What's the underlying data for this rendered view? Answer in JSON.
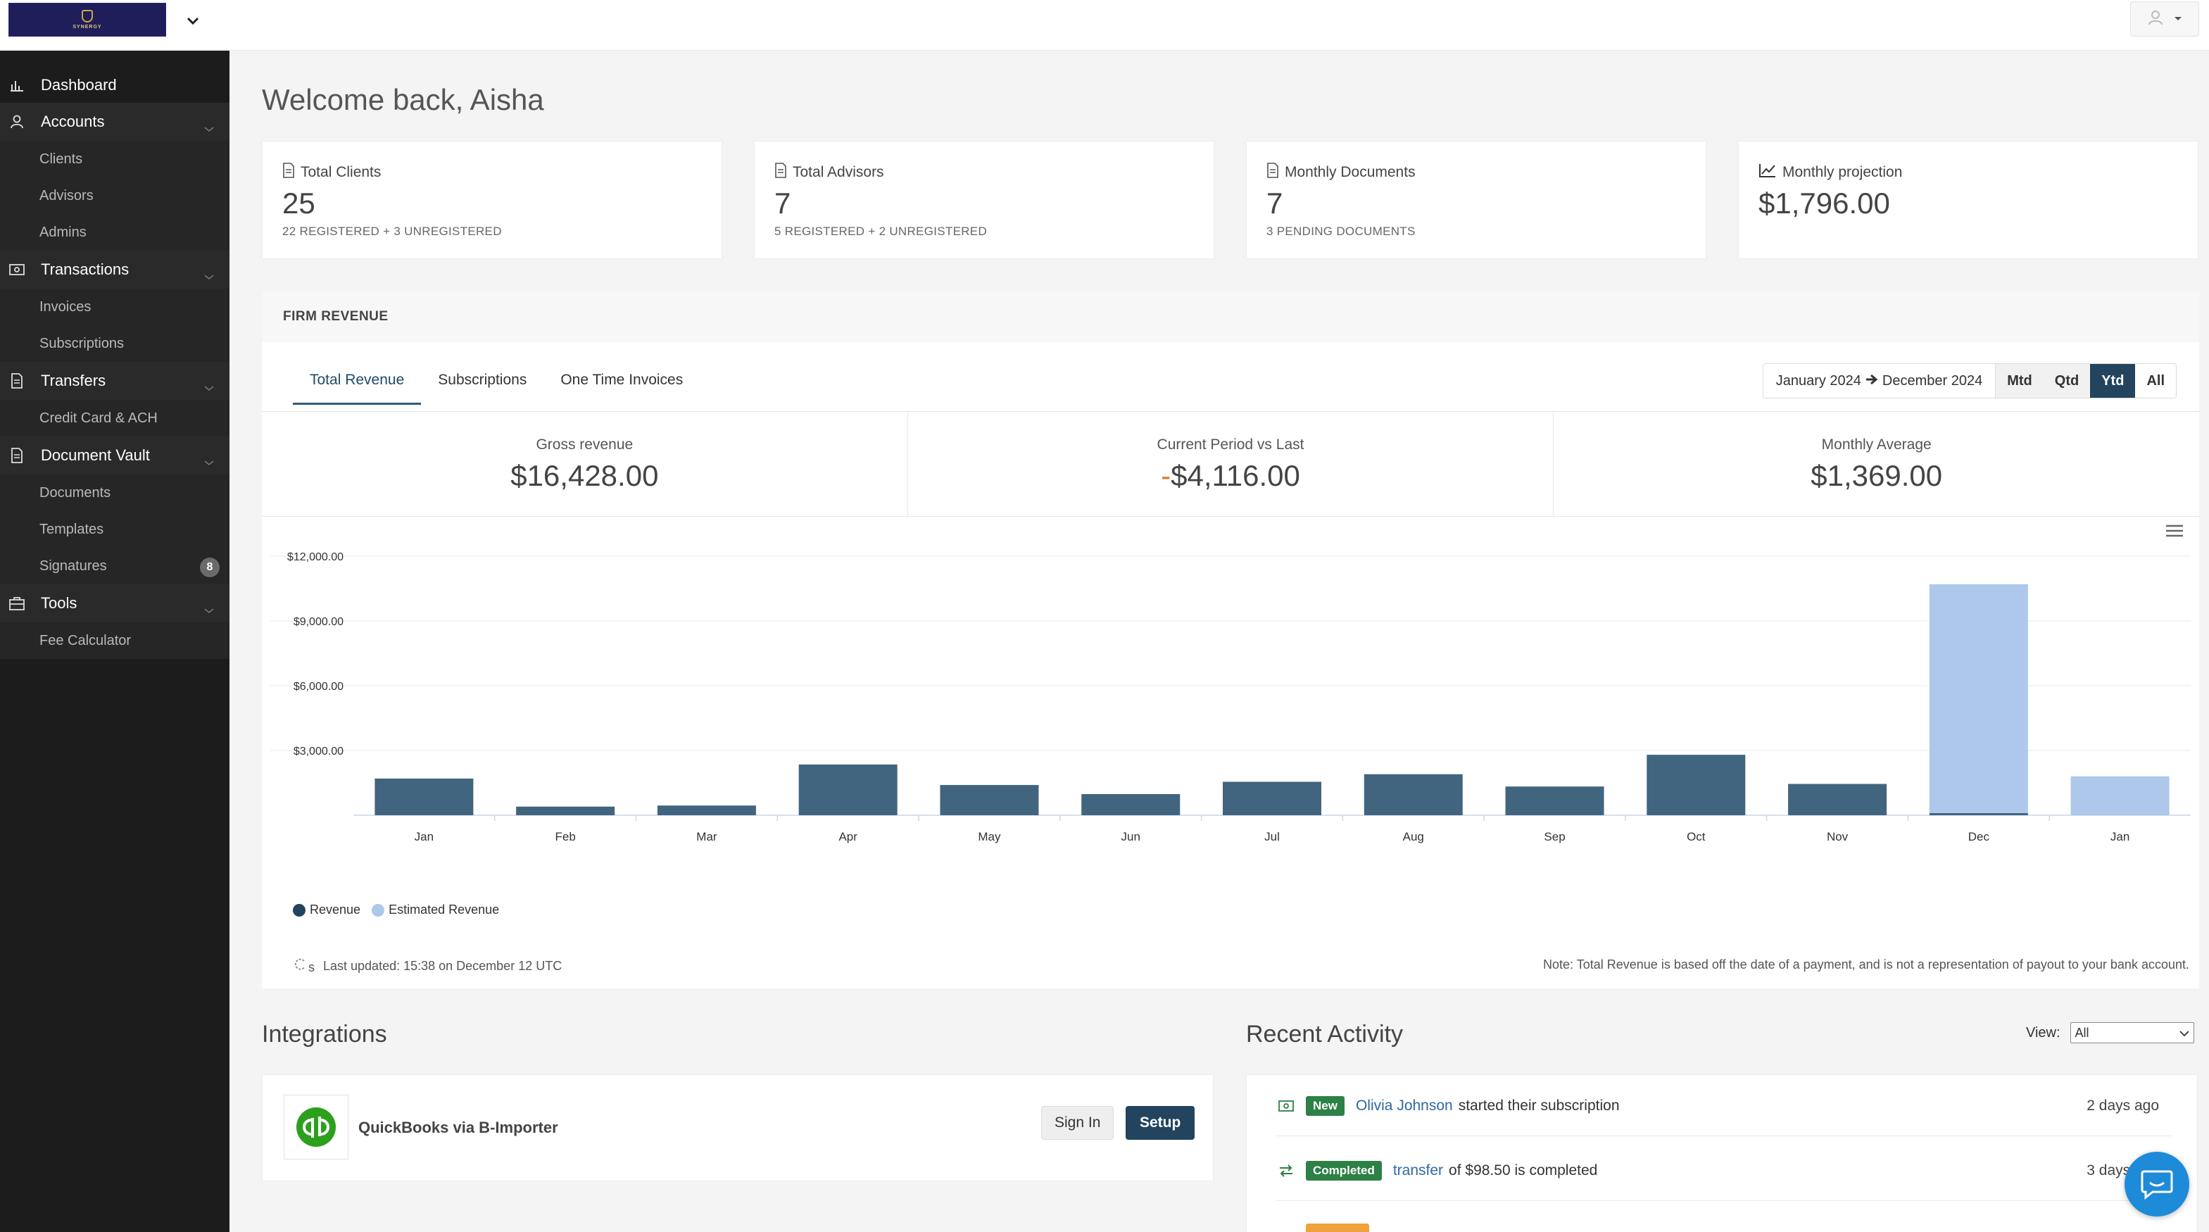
{
  "header": {
    "logo_text": "SYNERGY",
    "user_icon": "user-icon"
  },
  "sidebar": {
    "dashboard": "Dashboard",
    "accounts": {
      "label": "Accounts",
      "items": [
        "Clients",
        "Advisors",
        "Admins"
      ]
    },
    "transactions": {
      "label": "Transactions",
      "items": [
        "Invoices",
        "Subscriptions"
      ]
    },
    "transfers": {
      "label": "Transfers",
      "items": [
        "Credit Card & ACH"
      ]
    },
    "document_vault": {
      "label": "Document Vault",
      "items": [
        "Documents",
        "Templates",
        "Signatures"
      ],
      "signatures_badge": "8"
    },
    "tools": {
      "label": "Tools",
      "items": [
        "Fee Calculator"
      ]
    }
  },
  "welcome": "Welcome back, Aisha",
  "stats": [
    {
      "label": "Total Clients",
      "value": "25",
      "sub": "22 REGISTERED + 3 UNREGISTERED"
    },
    {
      "label": "Total Advisors",
      "value": "7",
      "sub": "5 REGISTERED + 2 UNREGISTERED"
    },
    {
      "label": "Monthly Documents",
      "value": "7",
      "sub": "3 PENDING DOCUMENTS"
    },
    {
      "label": "Monthly projection",
      "value": "$1,796.00",
      "sub": ""
    }
  ],
  "revenue": {
    "header": "FIRM REVENUE",
    "tabs": [
      "Total Revenue",
      "Subscriptions",
      "One Time Invoices"
    ],
    "range_start": "January 2024",
    "range_end": "December 2024",
    "period_buttons": [
      "Mtd",
      "Qtd",
      "Ytd",
      "All"
    ],
    "metrics": [
      {
        "label": "Gross revenue",
        "value": "$16,428.00"
      },
      {
        "label": "Current Period vs Last",
        "sign": "-",
        "value": "$4,116.00"
      },
      {
        "label": "Monthly Average",
        "value": "$1,369.00"
      }
    ],
    "last_updated": "Last updated: 15:38 on December 12 UTC",
    "note": "Note: Total Revenue is based off the date of a payment, and is not a representation of payout to your bank account.",
    "refresh_suffix": "s"
  },
  "chart_data": {
    "type": "bar",
    "categories": [
      "Jan",
      "Feb",
      "Mar",
      "Apr",
      "May",
      "Jun",
      "Jul",
      "Aug",
      "Sep",
      "Oct",
      "Nov",
      "Dec",
      "Jan"
    ],
    "series": [
      {
        "name": "Revenue",
        "color": "#41657f",
        "values": [
          1700,
          400,
          450,
          2350,
          1400,
          980,
          1550,
          1900,
          1330,
          2800,
          1450,
          100,
          0
        ]
      },
      {
        "name": "Estimated Revenue",
        "color": "#adc8ea",
        "values": [
          0,
          0,
          0,
          0,
          0,
          0,
          0,
          0,
          0,
          0,
          0,
          10600,
          1800
        ]
      }
    ],
    "stacked": true,
    "y_ticks": [
      "$3,000.00",
      "$6,000.00",
      "$9,000.00",
      "$12,000.00"
    ],
    "y_tick_values": [
      3000,
      6000,
      9000,
      12000
    ],
    "ylim": [
      0,
      12000
    ],
    "grid": true,
    "legend": "bottom-left"
  },
  "integrations": {
    "title": "Integrations",
    "name": "QuickBooks via B-Importer",
    "signin": "Sign In",
    "setup": "Setup"
  },
  "activity": {
    "title": "Recent Activity",
    "view_label": "View:",
    "view_value": "All",
    "rows": [
      {
        "pill": "New",
        "link": "Olivia Johnson",
        "text": "started their subscription",
        "time": "2 days ago"
      },
      {
        "pill": "Completed",
        "link": "transfer",
        "text": "of $98.50 is completed",
        "time": "3 days ago"
      }
    ]
  }
}
